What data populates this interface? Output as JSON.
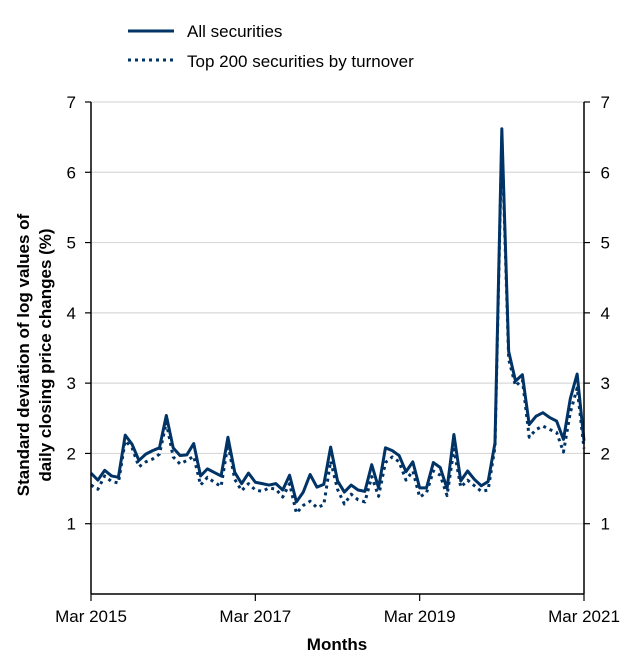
{
  "chart_data": {
    "type": "line",
    "xlabel": "Months",
    "ylabel_lines": [
      "Standard deviation of log values of",
      "daily closing price changes (%)"
    ],
    "x_ticks": [
      "Mar 2015",
      "Mar 2017",
      "Mar 2019",
      "Mar 2021"
    ],
    "y_ticks": [
      "1",
      "2",
      "3",
      "4",
      "5",
      "6",
      "7"
    ],
    "ylim": [
      0,
      7
    ],
    "grid": "horizontal",
    "legend_position": "top-left",
    "colors": {
      "series_line": "#003366",
      "grid": "#d9d9d9",
      "axis": "#000000"
    },
    "series": [
      {
        "name": "All securities",
        "style": "solid",
        "values": [
          1.72,
          1.62,
          1.76,
          1.68,
          1.66,
          2.26,
          2.13,
          1.9,
          1.99,
          2.04,
          2.08,
          2.54,
          2.08,
          1.97,
          1.98,
          2.14,
          1.68,
          1.78,
          1.73,
          1.68,
          2.23,
          1.73,
          1.57,
          1.72,
          1.59,
          1.57,
          1.55,
          1.57,
          1.48,
          1.69,
          1.31,
          1.45,
          1.7,
          1.52,
          1.56,
          2.09,
          1.61,
          1.45,
          1.55,
          1.48,
          1.46,
          1.84,
          1.51,
          2.08,
          2.04,
          1.97,
          1.74,
          1.88,
          1.51,
          1.51,
          1.87,
          1.8,
          1.5,
          2.27,
          1.61,
          1.75,
          1.63,
          1.54,
          1.6,
          2.15,
          6.62,
          3.45,
          3.03,
          3.12,
          2.41,
          2.53,
          2.58,
          2.51,
          2.46,
          2.2,
          2.78,
          3.13,
          2.18
        ]
      },
      {
        "name": "Top 200 securities by turnover",
        "style": "dotted",
        "values": [
          1.55,
          1.49,
          1.68,
          1.6,
          1.58,
          2.18,
          2.08,
          1.81,
          1.88,
          1.92,
          1.99,
          2.44,
          1.95,
          1.85,
          1.9,
          1.96,
          1.55,
          1.66,
          1.59,
          1.53,
          2.13,
          1.63,
          1.47,
          1.57,
          1.48,
          1.46,
          1.51,
          1.49,
          1.38,
          1.57,
          1.15,
          1.26,
          1.32,
          1.23,
          1.27,
          1.89,
          1.49,
          1.28,
          1.42,
          1.34,
          1.31,
          1.67,
          1.39,
          1.87,
          1.95,
          1.88,
          1.62,
          1.75,
          1.38,
          1.44,
          1.75,
          1.69,
          1.4,
          2.06,
          1.52,
          1.62,
          1.54,
          1.46,
          1.48,
          2.09,
          6.5,
          3.34,
          2.96,
          3.05,
          2.23,
          2.34,
          2.39,
          2.34,
          2.3,
          2.02,
          2.58,
          2.93,
          2.07
        ]
      }
    ]
  }
}
